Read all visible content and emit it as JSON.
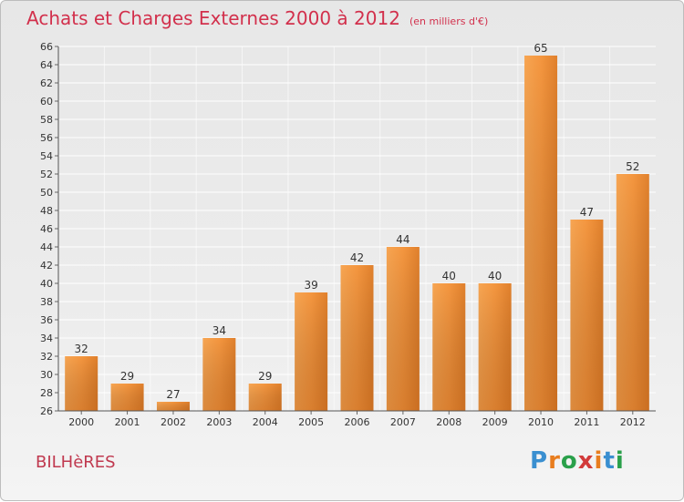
{
  "title": "Achats et Charges Externes 2000 à 2012",
  "subtitle": "(en milliers d'€)",
  "commune": "BILHèRES",
  "logo": {
    "text": "Proxiti",
    "colors": [
      "#3a8fd0",
      "#e87d1e",
      "#2aa04a",
      "#d23a3a",
      "#e87d1e",
      "#3a8fd0",
      "#2aa04a"
    ]
  },
  "colors": {
    "title": "#d2304c",
    "bar_light": "#f7a552",
    "bar_dark": "#d46d1d",
    "grid": "#ffffff"
  },
  "chart_data": {
    "type": "bar",
    "categories": [
      "2000",
      "2001",
      "2002",
      "2003",
      "2004",
      "2005",
      "2006",
      "2007",
      "2008",
      "2009",
      "2010",
      "2011",
      "2012"
    ],
    "values": [
      32,
      29,
      27,
      34,
      29,
      39,
      42,
      44,
      40,
      40,
      65,
      47,
      52
    ],
    "ylim": [
      26,
      66
    ],
    "yticks": [
      26,
      28,
      30,
      32,
      34,
      36,
      38,
      40,
      42,
      44,
      46,
      48,
      50,
      52,
      54,
      56,
      58,
      60,
      62,
      64,
      66
    ],
    "grid": true,
    "data_labels": true
  }
}
